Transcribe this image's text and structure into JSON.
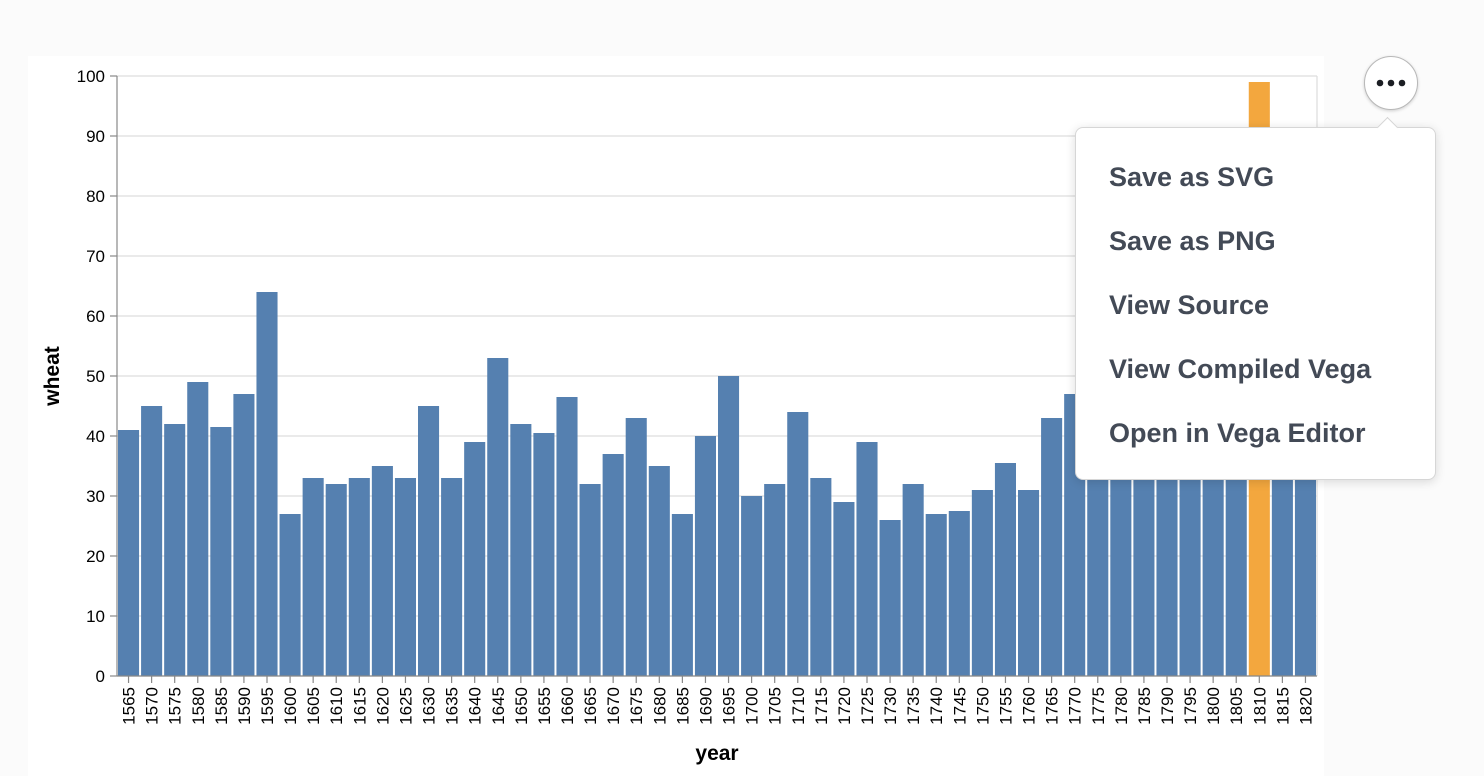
{
  "actions_menu": {
    "button_icon": "more-horizontal-icon",
    "items": [
      "Save as SVG",
      "Save as PNG",
      "View Source",
      "View Compiled Vega",
      "Open in Vega Editor"
    ]
  },
  "colors": {
    "bar": "#5580b0",
    "highlight": "#f3a73e",
    "grid": "#dddddd",
    "axis": "#888888",
    "text": "#000000",
    "menu_text": "#434a56"
  },
  "chart_data": {
    "type": "bar",
    "title": "",
    "xlabel": "year",
    "ylabel": "wheat",
    "ylim": [
      0,
      100
    ],
    "yticks": [
      0,
      10,
      20,
      30,
      40,
      50,
      60,
      70,
      80,
      90,
      100
    ],
    "grid": true,
    "highlighted_category": "1810",
    "categories": [
      "1565",
      "1570",
      "1575",
      "1580",
      "1585",
      "1590",
      "1595",
      "1600",
      "1605",
      "1610",
      "1615",
      "1620",
      "1625",
      "1630",
      "1635",
      "1640",
      "1645",
      "1650",
      "1655",
      "1660",
      "1665",
      "1670",
      "1675",
      "1680",
      "1685",
      "1690",
      "1695",
      "1700",
      "1705",
      "1710",
      "1715",
      "1720",
      "1725",
      "1730",
      "1735",
      "1740",
      "1745",
      "1750",
      "1755",
      "1760",
      "1765",
      "1770",
      "1775",
      "1780",
      "1785",
      "1790",
      "1795",
      "1800",
      "1805",
      "1810",
      "1815",
      "1820"
    ],
    "values": [
      41,
      45,
      42,
      49,
      41.5,
      47,
      64,
      27,
      33,
      32,
      33,
      35,
      33,
      45,
      33,
      39,
      53,
      42,
      40.5,
      46.5,
      32,
      37,
      43,
      35,
      27,
      40,
      50,
      30,
      32,
      44,
      33,
      29,
      39,
      26,
      32,
      27,
      27.5,
      31,
      35.5,
      31,
      43,
      47,
      38,
      38,
      38,
      39,
      40,
      41,
      38,
      99,
      45,
      44
    ]
  }
}
